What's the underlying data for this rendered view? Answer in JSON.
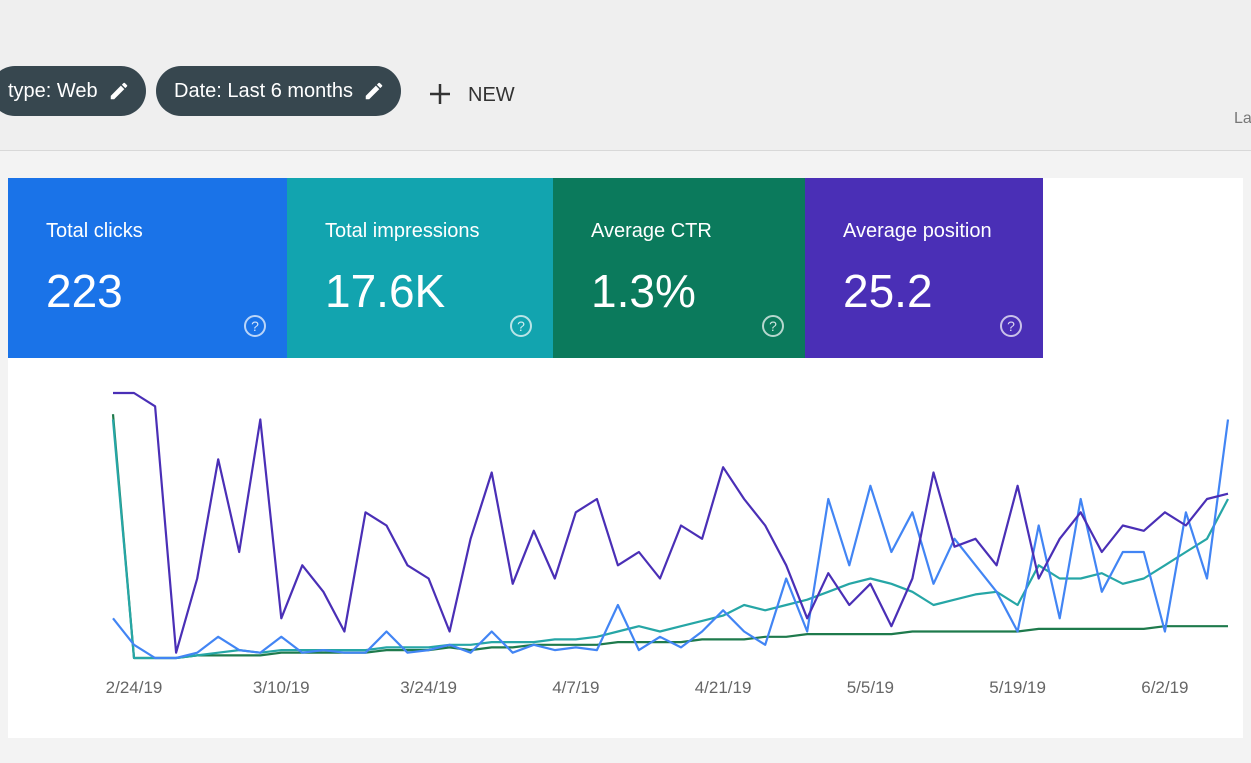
{
  "header": {
    "filters": [
      "type: Web",
      "Date: Last 6 months"
    ],
    "new_button": "NEW",
    "right_cut": "La"
  },
  "metrics": [
    {
      "label": "Total clicks",
      "value": "223",
      "color": "#1a73e8"
    },
    {
      "label": "Total impressions",
      "value": "17.6K",
      "color": "#12a4af"
    },
    {
      "label": "Average CTR",
      "value": "1.3%",
      "color": "#0b7a5c"
    },
    {
      "label": "Average position",
      "value": "25.2",
      "color": "#4a2fb6"
    }
  ],
  "chart_data": {
    "type": "line",
    "categories": [
      null,
      "2/24/19",
      null,
      null,
      null,
      null,
      null,
      null,
      "3/10/19",
      null,
      null,
      null,
      null,
      null,
      null,
      "3/24/19",
      null,
      null,
      null,
      null,
      null,
      null,
      "4/7/19",
      null,
      null,
      null,
      null,
      null,
      null,
      "4/21/19",
      null,
      null,
      null,
      null,
      null,
      null,
      "5/5/19",
      null,
      null,
      null,
      null,
      null,
      null,
      "5/19/19",
      null,
      null,
      null,
      null,
      null,
      null,
      "6/2/19",
      null,
      null,
      null
    ],
    "series": [
      {
        "color": "#4a2fb6",
        "values": [
          100,
          100,
          95,
          2,
          30,
          75,
          40,
          90,
          15,
          35,
          25,
          10,
          55,
          50,
          35,
          30,
          10,
          45,
          70,
          28,
          48,
          30,
          55,
          60,
          35,
          40,
          30,
          50,
          45,
          72,
          60,
          50,
          35,
          15,
          32,
          20,
          28,
          12,
          30,
          70,
          42,
          45,
          35,
          65,
          30,
          45,
          55,
          40,
          50,
          48,
          55,
          50,
          60,
          62
        ]
      },
      {
        "color": "#4285f4",
        "values": [
          15,
          5,
          0,
          0,
          2,
          8,
          3,
          2,
          8,
          2,
          3,
          2,
          2,
          10,
          2,
          3,
          5,
          2,
          10,
          2,
          5,
          3,
          4,
          3,
          20,
          3,
          8,
          4,
          10,
          18,
          10,
          5,
          30,
          10,
          60,
          35,
          65,
          40,
          55,
          28,
          45,
          35,
          25,
          10,
          50,
          15,
          60,
          25,
          40,
          40,
          10,
          55,
          30,
          90
        ]
      },
      {
        "color": "#26a6a6",
        "values": [
          90,
          0,
          0,
          0,
          1,
          2,
          3,
          2,
          3,
          3,
          3,
          3,
          3,
          4,
          4,
          4,
          5,
          5,
          6,
          6,
          6,
          7,
          7,
          8,
          10,
          12,
          10,
          12,
          14,
          16,
          20,
          18,
          20,
          22,
          25,
          28,
          30,
          28,
          25,
          20,
          22,
          24,
          25,
          20,
          35,
          30,
          30,
          32,
          28,
          30,
          35,
          40,
          45,
          60
        ]
      },
      {
        "color": "#1e7a4c",
        "values": [
          92,
          0,
          0,
          0,
          1,
          1,
          1,
          1,
          2,
          2,
          2,
          2,
          2,
          3,
          3,
          3,
          4,
          3,
          4,
          4,
          5,
          5,
          5,
          5,
          6,
          6,
          6,
          6,
          7,
          7,
          7,
          8,
          8,
          9,
          9,
          9,
          9,
          9,
          10,
          10,
          10,
          10,
          10,
          10,
          11,
          11,
          11,
          11,
          11,
          11,
          12,
          12,
          12,
          12
        ]
      }
    ]
  }
}
